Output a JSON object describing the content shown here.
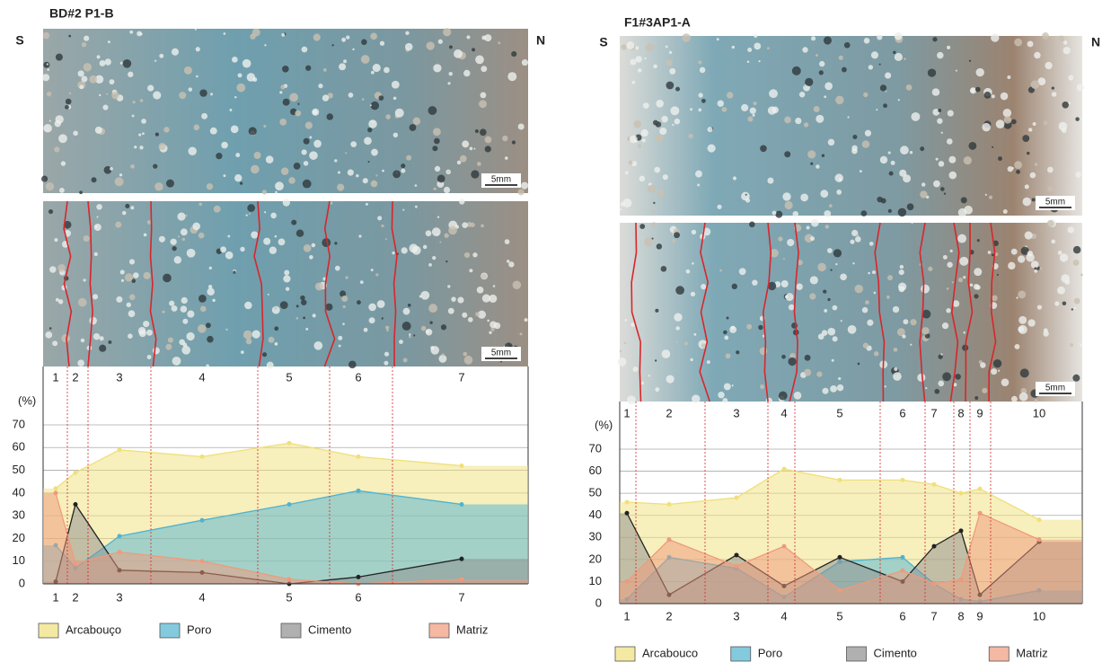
{
  "chart_data": [
    {
      "type": "area",
      "title": "BD#2 P1-B",
      "direction_labels": [
        "S",
        "N"
      ],
      "scale_bar": "5mm",
      "y_label": "(%)",
      "categories": [
        "1",
        "2",
        "3",
        "4",
        "5",
        "6",
        "7"
      ],
      "ylim": [
        0,
        70
      ],
      "yticks": [
        0,
        10,
        20,
        30,
        40,
        50,
        60,
        70
      ],
      "grid": true,
      "series": [
        {
          "name": "Arcabouço",
          "color": "#efe07a",
          "values": [
            42,
            49,
            59,
            56,
            62,
            56,
            52
          ]
        },
        {
          "name": "Poro",
          "color": "#4fb3d1",
          "values": [
            17,
            7,
            21,
            28,
            35,
            41,
            35
          ]
        },
        {
          "name": "Cimento",
          "color": "#8e8e8e",
          "values": [
            1,
            35,
            6,
            5,
            0,
            3,
            11
          ]
        },
        {
          "name": "Matriz",
          "color": "#ef9a7c",
          "values": [
            40,
            9,
            14,
            10,
            2,
            0,
            2
          ]
        }
      ]
    },
    {
      "type": "area",
      "title": "F1#3AP1-A",
      "direction_labels": [
        "S",
        "N"
      ],
      "scale_bar": "5mm",
      "y_label": "(%)",
      "categories": [
        "1",
        "2",
        "3",
        "4",
        "5",
        "6",
        "7",
        "8",
        "9",
        "10"
      ],
      "ylim": [
        0,
        70
      ],
      "yticks": [
        0,
        10,
        20,
        30,
        40,
        50,
        60,
        70
      ],
      "grid": true,
      "series": [
        {
          "name": "Arcabouco",
          "color": "#efe07a",
          "values": [
            46,
            45,
            48,
            61,
            56,
            56,
            54,
            50,
            52,
            38
          ]
        },
        {
          "name": "Poro",
          "color": "#4fb3d1",
          "values": [
            2,
            21,
            16,
            3,
            19,
            21,
            9,
            2,
            1,
            6
          ]
        },
        {
          "name": "Cimento",
          "color": "#8e8e8e",
          "values": [
            41,
            4,
            22,
            8,
            21,
            10,
            26,
            33,
            4,
            28
          ]
        },
        {
          "name": "Matriz",
          "color": "#ef9a7c",
          "values": [
            10,
            29,
            17,
            26,
            6,
            15,
            9,
            11,
            41,
            29
          ]
        }
      ]
    }
  ]
}
